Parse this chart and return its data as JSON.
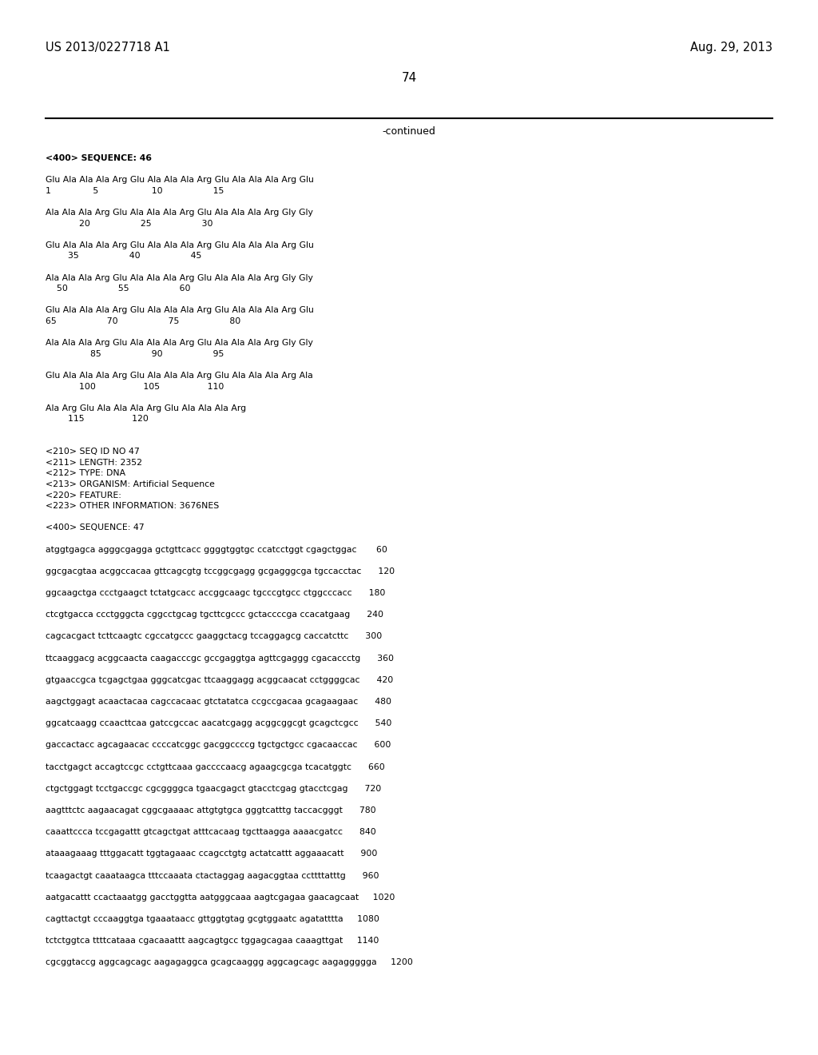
{
  "background_color": "#ffffff",
  "header_left": "US 2013/0227718 A1",
  "header_right": "Aug. 29, 2013",
  "page_number": "74",
  "continued_text": "-continued",
  "content_lines": [
    "<400> SEQUENCE: 46",
    "",
    "Glu Ala Ala Ala Arg Glu Ala Ala Ala Arg Glu Ala Ala Ala Arg Glu",
    "1               5                   10                  15",
    "",
    "Ala Ala Ala Arg Glu Ala Ala Ala Arg Glu Ala Ala Ala Arg Gly Gly",
    "            20                  25                  30",
    "",
    "Glu Ala Ala Ala Arg Glu Ala Ala Ala Arg Glu Ala Ala Ala Arg Glu",
    "        35                  40                  45",
    "",
    "Ala Ala Ala Arg Glu Ala Ala Ala Arg Glu Ala Ala Ala Arg Gly Gly",
    "    50                  55                  60",
    "",
    "Glu Ala Ala Ala Arg Glu Ala Ala Ala Arg Glu Ala Ala Ala Arg Glu",
    "65                  70                  75                  80",
    "",
    "Ala Ala Ala Arg Glu Ala Ala Ala Arg Glu Ala Ala Ala Arg Gly Gly",
    "                85                  90                  95",
    "",
    "Glu Ala Ala Ala Arg Glu Ala Ala Ala Arg Glu Ala Ala Ala Arg Ala",
    "            100                 105                 110",
    "",
    "Ala Arg Glu Ala Ala Ala Arg Glu Ala Ala Ala Arg",
    "        115                 120",
    "",
    "",
    "<210> SEQ ID NO 47",
    "<211> LENGTH: 2352",
    "<212> TYPE: DNA",
    "<213> ORGANISM: Artificial Sequence",
    "<220> FEATURE:",
    "<223> OTHER INFORMATION: 3676NES",
    "",
    "<400> SEQUENCE: 47",
    "",
    "atggtgagca agggcgagga gctgttcacc ggggtggtgc ccatcctggt cgagctggac       60",
    "",
    "ggcgacgtaa acggccacaa gttcagcgtg tccggcgagg gcgagggcga tgccacctac      120",
    "",
    "ggcaagctga ccctgaagct tctatgcacc accggcaagc tgcccgtgcc ctggcccacc      180",
    "",
    "ctcgtgacca ccctgggcta cggcctgcag tgcttcgccc gctaccccga ccacatgaag      240",
    "",
    "cagcacgact tcttcaagtc cgccatgccc gaaggctacg tccaggagcg caccatcttc      300",
    "",
    "ttcaaggacg acggcaacta caagacccgc gccgaggtga agttcgaggg cgacaccctg      360",
    "",
    "gtgaaccgca tcgagctgaa gggcatcgac ttcaaggagg acggcaacat cctggggcac      420",
    "",
    "aagctggagt acaactacaa cagccacaac gtctatatca ccgccgacaa gcagaagaac      480",
    "",
    "ggcatcaagg ccaacttcaa gatccgccac aacatcgagg acggcggcgt gcagctcgcc      540",
    "",
    "gaccactacc agcagaacac ccccatcggc gacggccccg tgctgctgcc cgacaaccac      600",
    "",
    "tacctgagct accagtccgc cctgttcaaa gaccccaacg agaagcgcga tcacatggtc      660",
    "",
    "ctgctggagt tcctgaccgc cgcggggca tgaacgagct gtacctcgag gtacctcgag      720",
    "",
    "aagtttctc aagaacagat cggcgaaaac attgtgtgca gggtcatttg taccacgggt      780",
    "",
    "caaattccca tccgagattt gtcagctgat atttcacaag tgcttaagga aaaacgatcc      840",
    "",
    "ataaagaaag tttggacatt tggtagaaac ccagcctgtg actatcattt aggaaacatt      900",
    "",
    "tcaagactgt caaataagca tttccaaata ctactaggag aagacggtaa ccttttatttg      960",
    "",
    "aatgacattt ccactaaatgg gacctggtta aatgggcaaa aagtcgagaa gaacagcaat     1020",
    "",
    "cagttactgt cccaaggtga tgaaataacc gttggtgtag gcgtggaatc agatatttta     1080",
    "",
    "tctctggtca ttttcataaa cgacaaattt aagcagtgcc tggagcagaa caaagttgat     1140",
    "",
    "cgcggtaccg aggcagcagc aagagaggca gcagcaaggg aggcagcagc aagaggggga     1200"
  ],
  "bold_lines": [
    0,
    33
  ]
}
